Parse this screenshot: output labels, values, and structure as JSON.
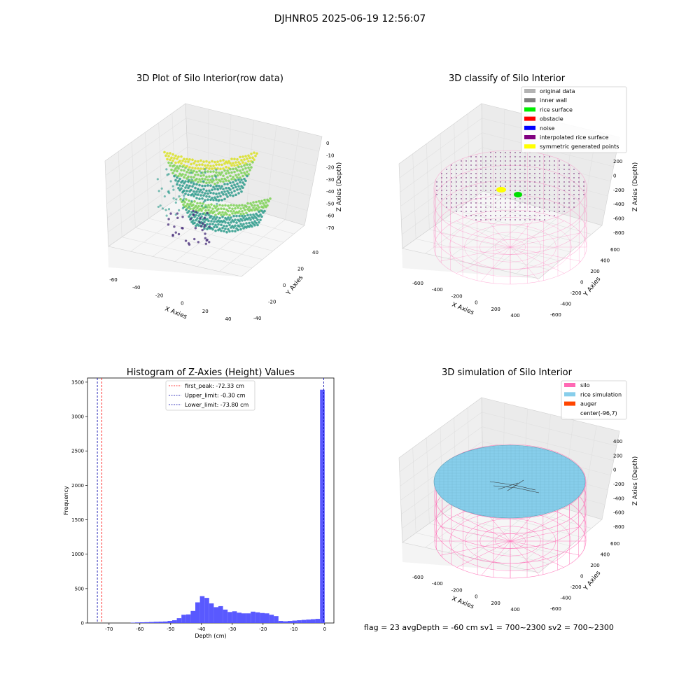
{
  "suptitle": "DJHNR05 2025-06-19 12:56:07",
  "footer": "flag = 23   avgDepth = -60 cm   sv1 = 700~2300  sv2 = 700~2300",
  "colors": {
    "viridis_dark": "#472c7a",
    "viridis_mid": "#2a9a8a",
    "viridis_light": "#7ad151",
    "viridis_yellow": "#d9e021",
    "silo_pink": "#ff69b4",
    "rice_blue": "#87ceeb",
    "auger": "#ff4500",
    "hist_blue": "#5050ff",
    "pane_grey": "#f2f2f2"
  },
  "panels": {
    "raw": {
      "title": "3D Plot of Silo Interior(row data)",
      "x_label": "X Axies",
      "y_label": "Y Axies",
      "z_label": "Z Axies (Depth)",
      "x_ticks": [
        "-60",
        "-40",
        "-20",
        "0",
        "20",
        "40"
      ],
      "y_ticks": [
        "-40",
        "-20",
        "0",
        "20",
        "40"
      ],
      "z_ticks": [
        "0",
        "-10",
        "-20",
        "-30",
        "-40",
        "-50",
        "-60",
        "-70"
      ]
    },
    "classify": {
      "title": "3D classify of Silo Interior",
      "x_label": "X Axies",
      "y_label": "Y Axies",
      "z_label": "Z Axies (Depth)",
      "x_ticks": [
        "-600",
        "-400",
        "-200",
        "0",
        "200",
        "400"
      ],
      "y_ticks": [
        "-600",
        "-400",
        "-200",
        "0",
        "200",
        "400",
        "600"
      ],
      "z_ticks": [
        "200",
        "0",
        "-200",
        "-400",
        "-600",
        "-800"
      ],
      "legend": [
        {
          "label": "original data",
          "color": "#b3b3b3"
        },
        {
          "label": "inner wall",
          "color": "#808080"
        },
        {
          "label": "rice surface",
          "color": "#00ee00"
        },
        {
          "label": "obstacle",
          "color": "#ff0000"
        },
        {
          "label": "noise",
          "color": "#0000ff"
        },
        {
          "label": "interpolated rice surface",
          "color": "#800080"
        },
        {
          "label": "symmetric generated points",
          "color": "#ffff00"
        }
      ]
    },
    "simulation": {
      "title": "3D simulation of Silo Interior",
      "x_label": "X Axies",
      "y_label": "Y Axies",
      "z_label": "Z Axies (Depth)",
      "x_ticks": [
        "-600",
        "-400",
        "-200",
        "0",
        "200",
        "400"
      ],
      "y_ticks": [
        "-600",
        "-400",
        "-200",
        "0",
        "200",
        "400",
        "600"
      ],
      "z_ticks": [
        "400",
        "200",
        "0",
        "-200",
        "-400",
        "-600",
        "-800"
      ],
      "legend": [
        {
          "label": "silo",
          "color": "#ff69b4"
        },
        {
          "label": "rice simulation",
          "color": "#87ceeb"
        },
        {
          "label": "auger",
          "color": "#ff4500"
        },
        {
          "label": "center(-96,7)",
          "color": ""
        }
      ]
    }
  },
  "chart_data": {
    "type": "bar",
    "title": "Histogram of Z-Axies (Height) Values",
    "xlabel": "Depth (cm)",
    "ylabel": "Frequency",
    "xlim": [
      -77,
      3
    ],
    "ylim": [
      0,
      3560
    ],
    "x_ticks": [
      -70,
      -60,
      -50,
      -40,
      -30,
      -20,
      -10,
      0
    ],
    "y_ticks": [
      0,
      500,
      1000,
      1500,
      2000,
      2500,
      3000,
      3500
    ],
    "bin_width": 1.5,
    "bins": [
      {
        "x0": -63.0,
        "v": 5
      },
      {
        "x0": -61.5,
        "v": 8
      },
      {
        "x0": -60.0,
        "v": 10
      },
      {
        "x0": -58.5,
        "v": 12
      },
      {
        "x0": -57.0,
        "v": 15
      },
      {
        "x0": -55.5,
        "v": 18
      },
      {
        "x0": -54.0,
        "v": 20
      },
      {
        "x0": -52.5,
        "v": 22
      },
      {
        "x0": -51.0,
        "v": 30
      },
      {
        "x0": -49.5,
        "v": 40
      },
      {
        "x0": -48.0,
        "v": 70
      },
      {
        "x0": -46.5,
        "v": 120
      },
      {
        "x0": -45.0,
        "v": 125
      },
      {
        "x0": -43.5,
        "v": 175
      },
      {
        "x0": -42.0,
        "v": 300
      },
      {
        "x0": -40.5,
        "v": 390
      },
      {
        "x0": -39.0,
        "v": 365
      },
      {
        "x0": -37.5,
        "v": 285
      },
      {
        "x0": -36.0,
        "v": 230
      },
      {
        "x0": -34.5,
        "v": 245
      },
      {
        "x0": -33.0,
        "v": 195
      },
      {
        "x0": -31.5,
        "v": 160
      },
      {
        "x0": -30.0,
        "v": 170
      },
      {
        "x0": -28.5,
        "v": 150
      },
      {
        "x0": -27.0,
        "v": 140
      },
      {
        "x0": -25.5,
        "v": 140
      },
      {
        "x0": -24.0,
        "v": 165
      },
      {
        "x0": -22.5,
        "v": 155
      },
      {
        "x0": -21.0,
        "v": 145
      },
      {
        "x0": -19.5,
        "v": 140
      },
      {
        "x0": -18.0,
        "v": 120
      },
      {
        "x0": -16.5,
        "v": 100
      },
      {
        "x0": -15.0,
        "v": 30
      },
      {
        "x0": -13.5,
        "v": 25
      },
      {
        "x0": -12.0,
        "v": 30
      },
      {
        "x0": -10.5,
        "v": 35
      },
      {
        "x0": -9.0,
        "v": 40
      },
      {
        "x0": -7.5,
        "v": 45
      },
      {
        "x0": -6.0,
        "v": 50
      },
      {
        "x0": -4.5,
        "v": 55
      },
      {
        "x0": -3.0,
        "v": 60
      },
      {
        "x0": -1.5,
        "v": 3390
      }
    ],
    "vlines": [
      {
        "x": -72.33,
        "label": "first_peak: -72.33 cm",
        "color": "#ff0000"
      },
      {
        "x": -0.3,
        "label": "Upper_limit: -0.30 cm",
        "color": "#0000aa"
      },
      {
        "x": -73.8,
        "label": "Lower_limit: -73.80 cm",
        "color": "#0000aa"
      }
    ]
  }
}
